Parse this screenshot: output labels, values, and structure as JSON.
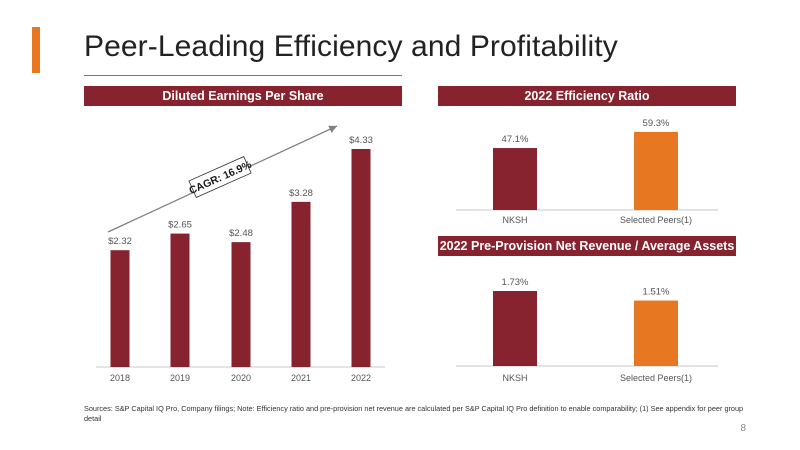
{
  "slide": {
    "title": "Peer-Leading Efficiency and Profitability",
    "footnote": "Sources: S&P Capital IQ Pro, Company filings; Note: Efficiency ratio and pre-provision net revenue are calculated per S&P Capital IQ Pro definition to enable comparability; (1) See appendix for peer group detail",
    "page_number": "8",
    "colors": {
      "maroon": "#86232F",
      "orange": "#E87722",
      "accent": "#E87722"
    }
  },
  "chart_data": [
    {
      "type": "bar",
      "title": "Diluted Earnings Per Share",
      "categories": [
        "2018",
        "2019",
        "2020",
        "2021",
        "2022"
      ],
      "values": [
        2.32,
        2.65,
        2.48,
        3.28,
        4.33
      ],
      "data_labels": [
        "$2.32",
        "$2.65",
        "$2.48",
        "$3.28",
        "$4.33"
      ],
      "bar_color": "#86232F",
      "annotation": "CAGR: 16.9%",
      "ylim": [
        0,
        4.33
      ]
    },
    {
      "type": "bar",
      "title": "2022 Efficiency Ratio",
      "categories": [
        "NKSH",
        "Selected Peers(1)"
      ],
      "values": [
        47.1,
        59.3
      ],
      "data_labels": [
        "47.1%",
        "59.3%"
      ],
      "bar_colors": [
        "#86232F",
        "#E87722"
      ],
      "ylim": [
        0,
        59.3
      ]
    },
    {
      "type": "bar",
      "title": "2022 Pre-Provision Net Revenue / Average Assets",
      "categories": [
        "NKSH",
        "Selected Peers(1)"
      ],
      "values": [
        1.73,
        1.51
      ],
      "data_labels": [
        "1.73%",
        "1.51%"
      ],
      "bar_colors": [
        "#86232F",
        "#E87722"
      ],
      "ylim": [
        0,
        1.73
      ]
    }
  ]
}
